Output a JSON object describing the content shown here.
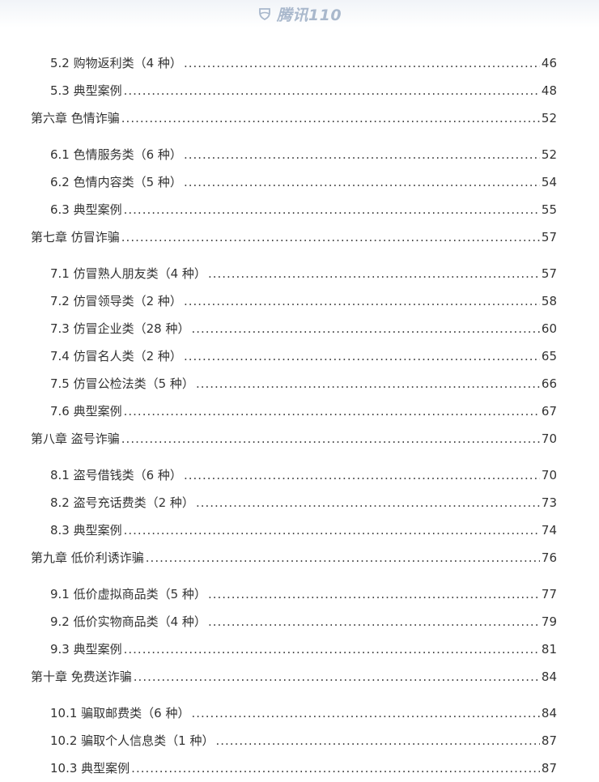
{
  "header": {
    "logo_text": "腾讯110",
    "logo_icon": "shield-icon"
  },
  "colors": {
    "logo": "#a9b8cc",
    "text": "#333333"
  },
  "toc": [
    {
      "type": "section",
      "title": "5.2 购物返利类（4 种）",
      "page": "46"
    },
    {
      "type": "section",
      "title": "5.3 典型案例",
      "page": "48"
    },
    {
      "type": "chapter",
      "title": "第六章  色情诈骗",
      "page": "52"
    },
    {
      "type": "section",
      "title": "6.1 色情服务类（6 种）",
      "page": "52"
    },
    {
      "type": "section",
      "title": "6.2 色情内容类（5 种）",
      "page": "54"
    },
    {
      "type": "section",
      "title": "6.3 典型案例",
      "page": "55"
    },
    {
      "type": "chapter",
      "title": "第七章  仿冒诈骗",
      "page": "57"
    },
    {
      "type": "section",
      "title": "7.1 仿冒熟人朋友类（4 种）",
      "page": "57"
    },
    {
      "type": "section",
      "title": "7.2 仿冒领导类（2 种）",
      "page": "58"
    },
    {
      "type": "section",
      "title": "7.3 仿冒企业类（28 种）",
      "page": "60"
    },
    {
      "type": "section",
      "title": "7.4 仿冒名人类（2 种）",
      "page": "65"
    },
    {
      "type": "section",
      "title": "7.5 仿冒公检法类（5 种）",
      "page": "66"
    },
    {
      "type": "section",
      "title": "7.6 典型案例",
      "page": "67"
    },
    {
      "type": "chapter",
      "title": "第八章  盗号诈骗",
      "page": "70"
    },
    {
      "type": "section",
      "title": "8.1 盗号借钱类（6 种）",
      "page": "70"
    },
    {
      "type": "section",
      "title": "8.2 盗号充话费类（2 种）",
      "page": "73"
    },
    {
      "type": "section",
      "title": "8.3 典型案例",
      "page": "74"
    },
    {
      "type": "chapter",
      "title": "第九章  低价利诱诈骗",
      "page": "76"
    },
    {
      "type": "section",
      "title": "9.1 低价虚拟商品类（5 种）",
      "page": "77"
    },
    {
      "type": "section",
      "title": "9.2 低价实物商品类（4 种）",
      "page": "79"
    },
    {
      "type": "section",
      "title": "9.3 典型案例",
      "page": "81"
    },
    {
      "type": "chapter",
      "title": "第十章  免费送诈骗",
      "page": "84"
    },
    {
      "type": "section",
      "title": "10.1 骗取邮费类（6 种）",
      "page": "84"
    },
    {
      "type": "section",
      "title": "10.2 骗取个人信息类（1 种）",
      "page": "87"
    },
    {
      "type": "section",
      "title": "10.3 典型案例",
      "page": "87"
    }
  ]
}
